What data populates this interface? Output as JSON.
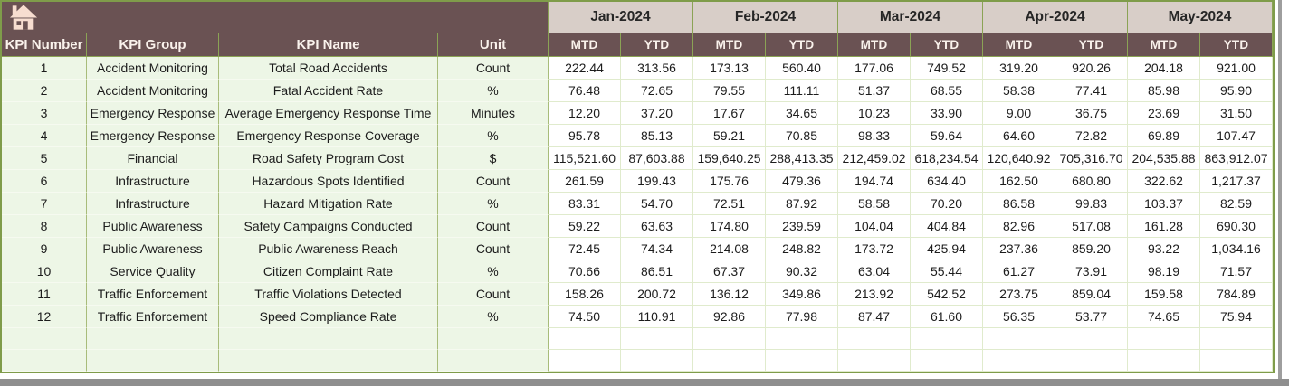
{
  "table": {
    "columns": [
      "KPI Number",
      "KPI Group",
      "KPI Name",
      "Unit"
    ],
    "months": [
      "Jan-2024",
      "Feb-2024",
      "Mar-2024",
      "Apr-2024",
      "May-2024"
    ],
    "period_labels": [
      "MTD",
      "YTD"
    ],
    "rows": [
      {
        "kpi_number": "1",
        "kpi_group": "Accident Monitoring",
        "kpi_name": "Total Road Accidents",
        "unit": "Count",
        "values": [
          "222.44",
          "313.56",
          "173.13",
          "560.40",
          "177.06",
          "749.52",
          "319.20",
          "920.26",
          "204.18",
          "921.00"
        ]
      },
      {
        "kpi_number": "2",
        "kpi_group": "Accident Monitoring",
        "kpi_name": "Fatal Accident Rate",
        "unit": "%",
        "values": [
          "76.48",
          "72.65",
          "79.55",
          "111.11",
          "51.37",
          "68.55",
          "58.38",
          "77.41",
          "85.98",
          "95.90"
        ]
      },
      {
        "kpi_number": "3",
        "kpi_group": "Emergency Response",
        "kpi_name": "Average Emergency Response Time",
        "unit": "Minutes",
        "values": [
          "12.20",
          "37.20",
          "17.67",
          "34.65",
          "10.23",
          "33.90",
          "9.00",
          "36.75",
          "23.69",
          "31.50"
        ]
      },
      {
        "kpi_number": "4",
        "kpi_group": "Emergency Response",
        "kpi_name": "Emergency Response Coverage",
        "unit": "%",
        "values": [
          "95.78",
          "85.13",
          "59.21",
          "70.85",
          "98.33",
          "59.64",
          "64.60",
          "72.82",
          "69.89",
          "107.47"
        ]
      },
      {
        "kpi_number": "5",
        "kpi_group": "Financial",
        "kpi_name": "Road Safety Program Cost",
        "unit": "$",
        "values": [
          "115,521.60",
          "87,603.88",
          "159,640.25",
          "288,413.35",
          "212,459.02",
          "618,234.54",
          "120,640.92",
          "705,316.70",
          "204,535.88",
          "863,912.07"
        ]
      },
      {
        "kpi_number": "6",
        "kpi_group": "Infrastructure",
        "kpi_name": "Hazardous Spots Identified",
        "unit": "Count",
        "values": [
          "261.59",
          "199.43",
          "175.76",
          "479.36",
          "194.74",
          "634.40",
          "162.50",
          "680.80",
          "322.62",
          "1,217.37"
        ]
      },
      {
        "kpi_number": "7",
        "kpi_group": "Infrastructure",
        "kpi_name": "Hazard Mitigation Rate",
        "unit": "%",
        "values": [
          "83.31",
          "54.70",
          "72.51",
          "87.92",
          "58.58",
          "70.20",
          "86.58",
          "99.83",
          "103.37",
          "82.59"
        ]
      },
      {
        "kpi_number": "8",
        "kpi_group": "Public Awareness",
        "kpi_name": "Safety Campaigns Conducted",
        "unit": "Count",
        "values": [
          "59.22",
          "63.63",
          "174.80",
          "239.59",
          "104.04",
          "404.84",
          "82.96",
          "517.08",
          "161.28",
          "690.30"
        ]
      },
      {
        "kpi_number": "9",
        "kpi_group": "Public Awareness",
        "kpi_name": "Public Awareness Reach",
        "unit": "Count",
        "values": [
          "72.45",
          "74.34",
          "214.08",
          "248.82",
          "173.72",
          "425.94",
          "237.36",
          "859.20",
          "93.22",
          "1,034.16"
        ]
      },
      {
        "kpi_number": "10",
        "kpi_group": "Service Quality",
        "kpi_name": "Citizen Complaint Rate",
        "unit": "%",
        "values": [
          "70.66",
          "86.51",
          "67.37",
          "90.32",
          "63.04",
          "55.44",
          "61.27",
          "73.91",
          "98.19",
          "71.57"
        ]
      },
      {
        "kpi_number": "11",
        "kpi_group": "Traffic Enforcement",
        "kpi_name": "Traffic Violations Detected",
        "unit": "Count",
        "values": [
          "158.26",
          "200.72",
          "136.12",
          "349.86",
          "213.92",
          "542.52",
          "273.75",
          "859.04",
          "159.58",
          "784.89"
        ]
      },
      {
        "kpi_number": "12",
        "kpi_group": "Traffic Enforcement",
        "kpi_name": "Speed Compliance Rate",
        "unit": "%",
        "values": [
          "74.50",
          "110.91",
          "92.86",
          "77.98",
          "87.47",
          "61.60",
          "56.35",
          "53.77",
          "74.65",
          "75.94"
        ]
      }
    ],
    "empty_row_count": 2
  },
  "icons": {
    "home": "home-icon"
  },
  "colors": {
    "header_brown": "#6a5253",
    "month_band_bg": "#d8cec8",
    "header_text": "#faf2ec",
    "label_cell_bg": "#edf6e6",
    "value_cell_bg": "#ffffff",
    "grid_strong_green": "#8ba355",
    "grid_light_green": "#e0ebcd",
    "outer_border_green": "#7f9c4a",
    "home_icon_cream": "#f7ddd0",
    "frame_gray": "#9e9e9e"
  }
}
